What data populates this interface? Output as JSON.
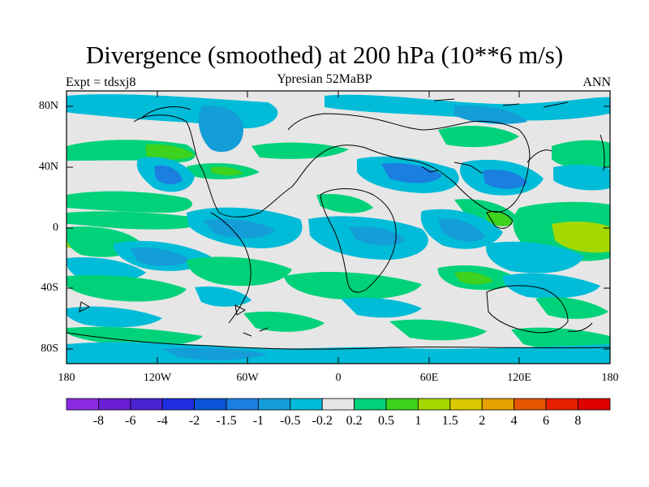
{
  "plot": {
    "title": "Divergence (smoothed) at 200 hPa (10**6 m/s)",
    "left_label": "Expt = tdsxj8",
    "center_label": "Ypresian  52MaBP",
    "right_label": "ANN"
  },
  "axes": {
    "lat_ticks": [
      "80N",
      "40N",
      "0",
      "40S",
      "80S"
    ],
    "lon_ticks": [
      "180",
      "120W",
      "60W",
      "0",
      "60E",
      "120E",
      "180"
    ]
  },
  "colorbar": {
    "labels": [
      "-8",
      "-6",
      "-4",
      "-2",
      "-1.5",
      "-1",
      "-0.5",
      "-0.2",
      "0.2",
      "0.5",
      "1",
      "1.5",
      "2",
      "4",
      "6",
      "8"
    ],
    "colors": [
      "#8a2be2",
      "#6a1ed6",
      "#4b22d2",
      "#1e2ee0",
      "#0a55d8",
      "#1a7fe0",
      "#139ed8",
      "#00bcd8",
      "#e6e6e6",
      "#00d27a",
      "#3cd21e",
      "#a5d700",
      "#dcc800",
      "#e6a000",
      "#e65500",
      "#e62000",
      "#e00000"
    ]
  },
  "palette": {
    "neutral": "#e6e6e6",
    "blue_light": "#00bcd8",
    "blue_mid": "#139ed8",
    "blue_deep": "#1a7fe0",
    "green": "#00d27a",
    "lime": "#3cd21e",
    "yellow_green": "#a5d700"
  }
}
